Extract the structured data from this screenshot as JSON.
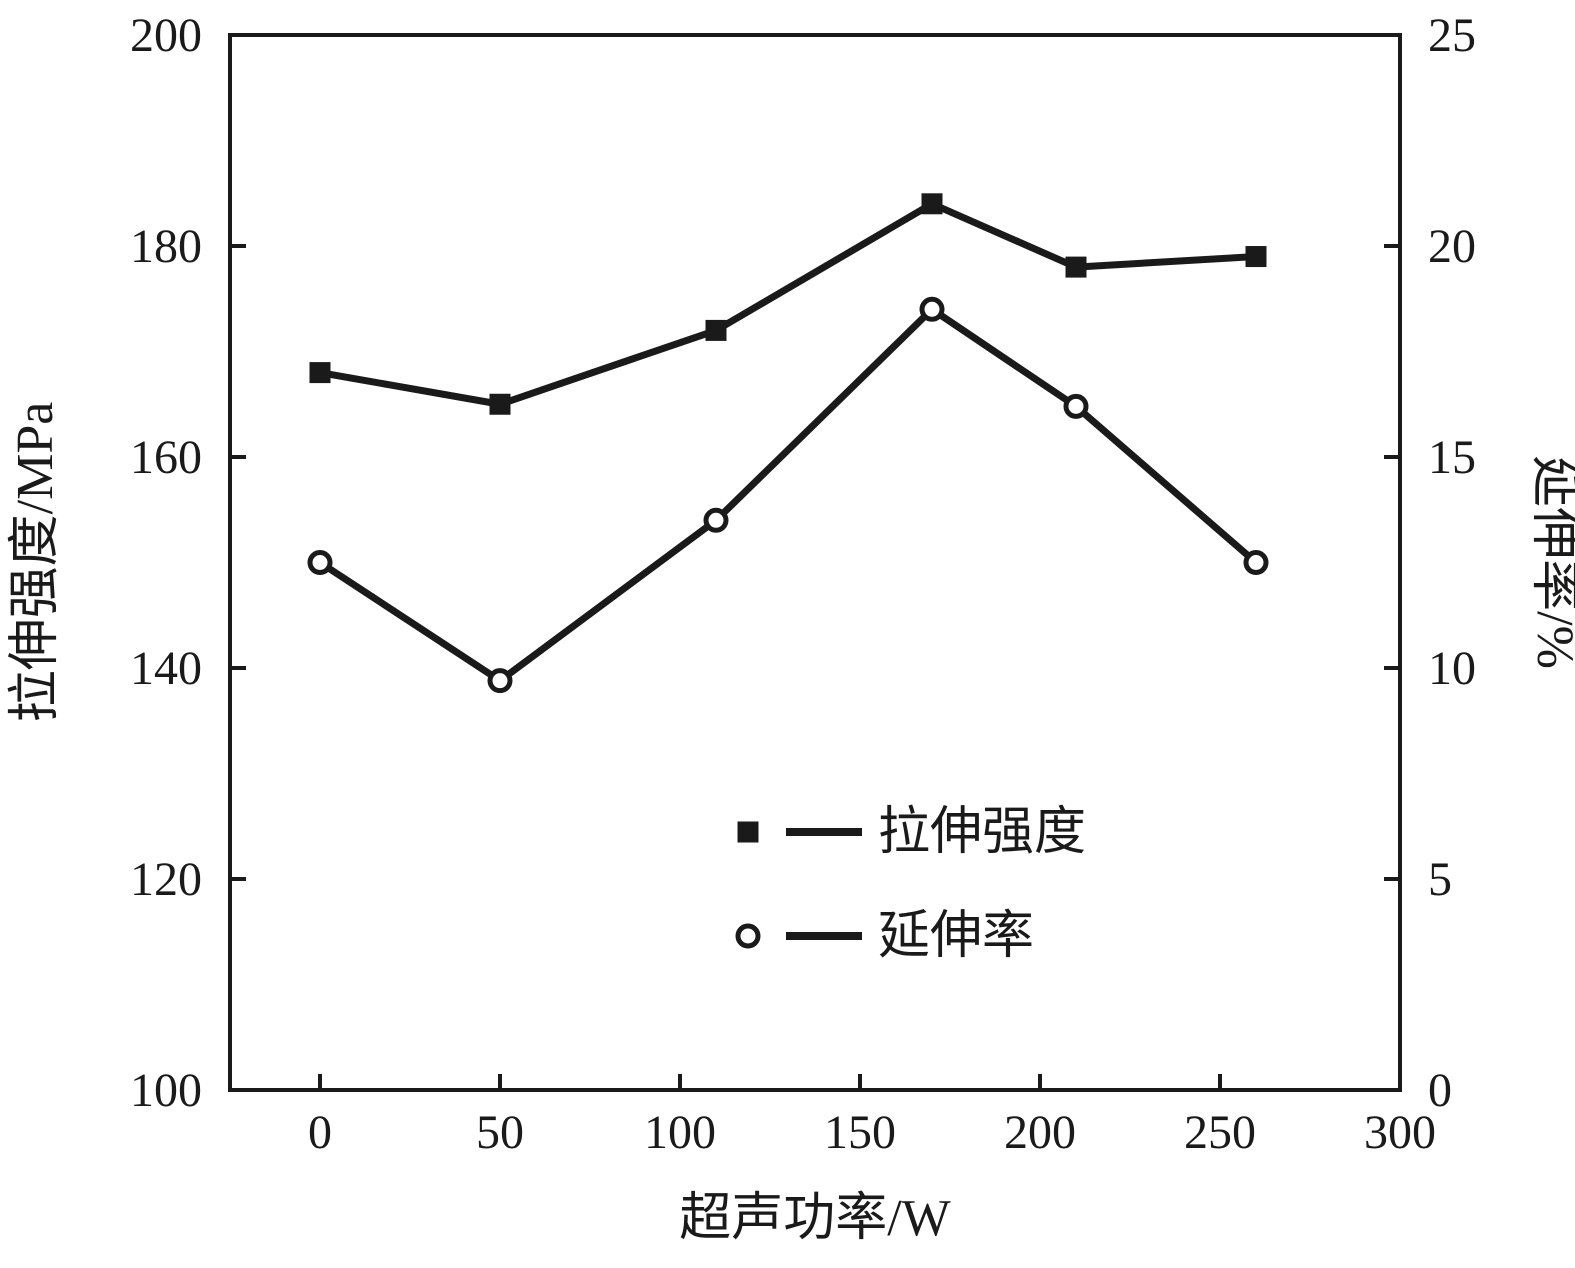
{
  "chart_data": {
    "type": "line",
    "title": "",
    "xlabel": "超声功率/W",
    "ylabel_left": "拉伸强度/MPa",
    "ylabel_right": "延伸率/%",
    "xlim": [
      -25,
      300
    ],
    "x_ticks": [
      0,
      50,
      100,
      150,
      200,
      250,
      300
    ],
    "ylim_left": [
      100,
      200
    ],
    "y_ticks_left": [
      100,
      120,
      140,
      160,
      180,
      200
    ],
    "ylim_right": [
      0,
      25
    ],
    "y_ticks_right": [
      0,
      5,
      10,
      15,
      20,
      25
    ],
    "grid": false,
    "legend_position": "inside-lower-center",
    "series": [
      {
        "name": "拉伸强度",
        "axis": "left",
        "marker": "filled-square",
        "x": [
          0,
          50,
          110,
          170,
          210,
          260
        ],
        "values": [
          168,
          165,
          172,
          184,
          178,
          179
        ]
      },
      {
        "name": "延伸率",
        "axis": "right",
        "marker": "open-circle",
        "x": [
          0,
          50,
          110,
          170,
          210,
          260
        ],
        "values": [
          12.5,
          9.7,
          13.5,
          18.5,
          16.2,
          12.5
        ]
      }
    ],
    "colors": {
      "line": "#1a1a1a",
      "marker_fill": "#1a1a1a",
      "marker_open_fill": "#ffffff",
      "background": "#ffffff",
      "axis": "#1a1a1a"
    }
  }
}
